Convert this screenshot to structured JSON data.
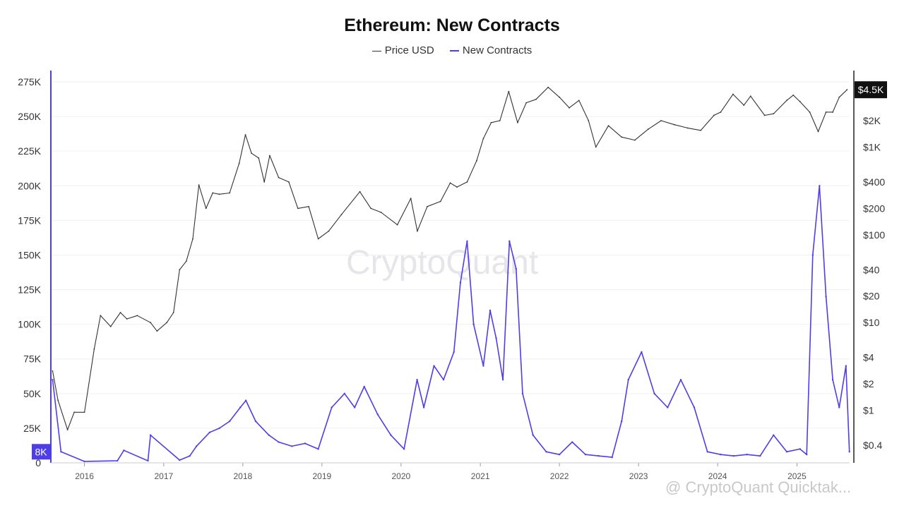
{
  "chart_data": {
    "type": "line",
    "title": "Ethereum: New Contracts",
    "legend": [
      {
        "name": "Price USD",
        "color": "#333333"
      },
      {
        "name": "New Contracts",
        "color": "#4f3de8"
      }
    ],
    "legend_position": "top-center",
    "grid": true,
    "x_axis": {
      "type": "date",
      "range": [
        "2015-07-30",
        "2025-09-01"
      ],
      "ticks": [
        "2016",
        "2017",
        "2018",
        "2019",
        "2020",
        "2021",
        "2022",
        "2023",
        "2024",
        "2025"
      ]
    },
    "y_left": {
      "label": "",
      "range": [
        0,
        275000
      ],
      "ticks": [
        "0",
        "25K",
        "50K",
        "75K",
        "100K",
        "125K",
        "150K",
        "175K",
        "200K",
        "225K",
        "250K",
        "275K"
      ],
      "current_marker": "8K"
    },
    "y_right": {
      "label": "",
      "scale": "log",
      "ticks": [
        "$0.4",
        "$1",
        "$2",
        "$4",
        "$10",
        "$20",
        "$40",
        "$100",
        "$200",
        "$400",
        "$1K",
        "$2K"
      ],
      "current_marker": "$4.5K"
    },
    "series": [
      {
        "name": "Price USD",
        "axis": "right",
        "color": "#333333",
        "x": [
          "2015-08-07",
          "2015-09-01",
          "2015-10-15",
          "2015-11-15",
          "2016-01-01",
          "2016-02-15",
          "2016-03-15",
          "2016-05-01",
          "2016-06-15",
          "2016-07-15",
          "2016-09-01",
          "2016-11-01",
          "2016-12-01",
          "2017-01-15",
          "2017-02-15",
          "2017-03-15",
          "2017-04-15",
          "2017-05-15",
          "2017-06-12",
          "2017-07-15",
          "2017-08-15",
          "2017-09-15",
          "2017-11-01",
          "2017-12-15",
          "2018-01-13",
          "2018-02-10",
          "2018-03-15",
          "2018-04-10",
          "2018-05-05",
          "2018-06-15",
          "2018-08-01",
          "2018-09-12",
          "2018-11-01",
          "2018-12-15",
          "2019-02-01",
          "2019-04-01",
          "2019-06-25",
          "2019-08-15",
          "2019-10-01",
          "2019-12-15",
          "2020-02-15",
          "2020-03-16",
          "2020-05-01",
          "2020-07-01",
          "2020-08-15",
          "2020-09-15",
          "2020-11-01",
          "2020-12-15",
          "2021-01-15",
          "2021-02-20",
          "2021-04-01",
          "2021-05-12",
          "2021-06-22",
          "2021-08-01",
          "2021-09-15",
          "2021-11-10",
          "2022-01-01",
          "2022-02-15",
          "2022-04-01",
          "2022-05-15",
          "2022-06-18",
          "2022-08-15",
          "2022-10-15",
          "2022-12-15",
          "2023-02-15",
          "2023-04-15",
          "2023-06-15",
          "2023-08-15",
          "2023-10-15",
          "2023-12-15",
          "2024-01-15",
          "2024-03-12",
          "2024-05-01",
          "2024-06-01",
          "2024-08-05",
          "2024-09-15",
          "2024-11-15",
          "2024-12-15",
          "2025-01-15",
          "2025-03-01",
          "2025-04-09",
          "2025-05-15",
          "2025-06-15",
          "2025-07-15",
          "2025-08-20"
        ],
        "values": [
          2.8,
          1.3,
          0.6,
          0.95,
          0.95,
          5,
          12,
          9,
          13,
          11,
          12,
          10,
          8,
          10,
          13,
          40,
          50,
          90,
          370,
          200,
          300,
          290,
          300,
          650,
          1380,
          850,
          750,
          400,
          800,
          450,
          400,
          200,
          210,
          90,
          110,
          170,
          310,
          200,
          180,
          130,
          260,
          110,
          210,
          240,
          390,
          350,
          400,
          700,
          1250,
          1900,
          2000,
          4300,
          1900,
          3200,
          3500,
          4800,
          3700,
          2800,
          3400,
          2000,
          1000,
          1750,
          1300,
          1200,
          1600,
          2000,
          1800,
          1650,
          1550,
          2300,
          2500,
          4000,
          3000,
          3800,
          2300,
          2400,
          3400,
          3900,
          3300,
          2500,
          1500,
          2500,
          2500,
          3700,
          4500
        ]
      },
      {
        "name": "New Contracts",
        "axis": "left",
        "color": "#4f3de8",
        "x": [
          "2015-08-07",
          "2015-09-15",
          "2016-01-01",
          "2016-06-01",
          "2016-07-01",
          "2016-10-20",
          "2016-11-01",
          "2017-03-15",
          "2017-05-01",
          "2017-06-01",
          "2017-08-01",
          "2017-09-15",
          "2017-11-01",
          "2017-12-20",
          "2018-01-15",
          "2018-03-01",
          "2018-05-01",
          "2018-06-15",
          "2018-08-15",
          "2018-10-15",
          "2018-12-15",
          "2019-02-15",
          "2019-04-15",
          "2019-06-01",
          "2019-07-15",
          "2019-09-15",
          "2019-11-15",
          "2020-01-15",
          "2020-03-15",
          "2020-04-15",
          "2020-06-01",
          "2020-07-15",
          "2020-09-01",
          "2020-10-01",
          "2020-11-01",
          "2020-12-01",
          "2021-01-15",
          "2021-02-15",
          "2021-03-15",
          "2021-04-15",
          "2021-05-15",
          "2021-06-15",
          "2021-07-15",
          "2021-09-01",
          "2021-11-01",
          "2022-01-01",
          "2022-03-01",
          "2022-05-01",
          "2022-07-01",
          "2022-09-01",
          "2022-10-15",
          "2022-11-15",
          "2023-01-15",
          "2023-03-15",
          "2023-05-15",
          "2023-07-15",
          "2023-09-15",
          "2023-11-15",
          "2024-01-15",
          "2024-03-15",
          "2024-05-15",
          "2024-07-15",
          "2024-09-15",
          "2024-11-15",
          "2025-01-15",
          "2025-02-15",
          "2025-03-15",
          "2025-04-15",
          "2025-05-15",
          "2025-06-15",
          "2025-07-15",
          "2025-08-15",
          "2025-08-31"
        ],
        "values": [
          60000,
          8000,
          1000,
          1500,
          9000,
          1500,
          20000,
          2000,
          5000,
          12000,
          22000,
          25000,
          30000,
          40000,
          45000,
          30000,
          20000,
          15000,
          12000,
          14000,
          10000,
          40000,
          50000,
          40000,
          55000,
          35000,
          20000,
          10000,
          60000,
          40000,
          70000,
          60000,
          80000,
          130000,
          160000,
          100000,
          70000,
          110000,
          90000,
          60000,
          160000,
          140000,
          50000,
          20000,
          8000,
          6000,
          15000,
          6000,
          5000,
          4000,
          30000,
          60000,
          80000,
          50000,
          40000,
          60000,
          40000,
          8000,
          6000,
          5000,
          6000,
          5000,
          20000,
          8000,
          10000,
          6000,
          150000,
          200000,
          120000,
          60000,
          40000,
          70000,
          8000
        ]
      }
    ]
  },
  "watermark": "CryptoQuant",
  "attribution": "@ CryptoQuant Quicktak..."
}
